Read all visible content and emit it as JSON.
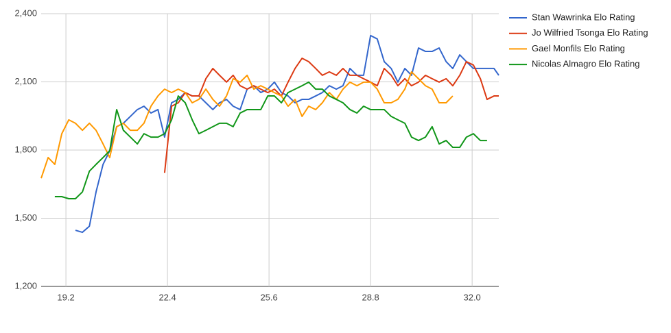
{
  "chart_data": {
    "type": "line",
    "x": [
      18.42,
      18.64,
      18.85,
      19.07,
      19.29,
      19.5,
      19.72,
      19.94,
      20.15,
      20.37,
      20.58,
      20.8,
      21.01,
      21.23,
      21.45,
      21.66,
      21.88,
      22.1,
      22.31,
      22.53,
      22.74,
      22.96,
      23.18,
      23.39,
      23.61,
      23.83,
      24.04,
      24.26,
      24.47,
      24.69,
      24.91,
      25.12,
      25.34,
      25.56,
      25.77,
      25.99,
      26.2,
      26.42,
      26.64,
      26.85,
      27.07,
      27.28,
      27.5,
      27.72,
      27.93,
      28.15,
      28.37,
      28.58,
      28.8,
      29.01,
      29.23,
      29.45,
      29.66,
      29.88,
      30.09,
      30.31,
      30.53,
      30.74,
      30.96,
      31.18,
      31.39,
      31.61,
      31.82,
      32.04,
      32.26,
      32.47,
      32.69,
      32.84
    ],
    "series": [
      {
        "name": "Stan Wawrinka Elo Rating",
        "color": "#3366cc",
        "values": [
          null,
          null,
          null,
          null,
          null,
          1447,
          1438,
          1465,
          1616,
          1737,
          1797,
          1903,
          1918,
          1948,
          1978,
          1993,
          1963,
          1978,
          1857,
          2008,
          2023,
          2053,
          2038,
          2038,
          2008,
          1978,
          2008,
          2023,
          1993,
          1978,
          2068,
          2083,
          2053,
          2068,
          2099,
          2053,
          2038,
          2008,
          2023,
          2023,
          2038,
          2053,
          2083,
          2068,
          2083,
          2159,
          2129,
          2129,
          2304,
          2289,
          2189,
          2159,
          2099,
          2159,
          2129,
          2249,
          2234,
          2234,
          2249,
          2189,
          2159,
          2219,
          2189,
          2159,
          2159,
          2159,
          2159,
          2129
        ]
      },
      {
        "name": "Jo Wilfried Tsonga Elo Rating",
        "color": "#dc3912",
        "values": [
          null,
          null,
          null,
          null,
          null,
          null,
          null,
          null,
          null,
          null,
          null,
          null,
          null,
          null,
          null,
          null,
          null,
          null,
          1700,
          1993,
          2008,
          2053,
          2038,
          2038,
          2114,
          2159,
          2129,
          2099,
          2129,
          2083,
          2068,
          2083,
          2068,
          2053,
          2068,
          2038,
          2099,
          2159,
          2204,
          2189,
          2159,
          2129,
          2144,
          2129,
          2159,
          2129,
          2129,
          2114,
          2099,
          2083,
          2159,
          2129,
          2083,
          2114,
          2083,
          2099,
          2129,
          2114,
          2099,
          2114,
          2083,
          2129,
          2189,
          2174,
          2114,
          2023,
          2038,
          2038
        ]
      },
      {
        "name": "Gael Monfils Elo Rating",
        "color": "#ff9900",
        "values": [
          1676,
          1767,
          1737,
          1872,
          1933,
          1918,
          1887,
          1918,
          1887,
          1827,
          1767,
          1903,
          1918,
          1887,
          1887,
          1918,
          1993,
          2038,
          2068,
          2053,
          2068,
          2053,
          2008,
          2023,
          2068,
          2023,
          1993,
          2038,
          2114,
          2099,
          2129,
          2068,
          2083,
          2068,
          2053,
          2038,
          1993,
          2023,
          1948,
          1993,
          1978,
          2008,
          2053,
          2023,
          2068,
          2099,
          2083,
          2099,
          2099,
          2068,
          2008,
          2008,
          2023,
          2068,
          2144,
          2114,
          2083,
          2068,
          2008,
          2008,
          2038,
          null,
          null,
          null,
          null,
          null,
          null,
          null
        ]
      },
      {
        "name": "Nicolas Almagro Elo Rating",
        "color": "#109618",
        "values": [
          null,
          null,
          1595,
          1595,
          1586,
          1586,
          1616,
          1707,
          1737,
          1767,
          1797,
          1978,
          1887,
          1857,
          1827,
          1872,
          1857,
          1857,
          1872,
          1933,
          2038,
          2008,
          1933,
          1872,
          1887,
          1903,
          1918,
          1918,
          1903,
          1963,
          1978,
          1978,
          1978,
          2038,
          2038,
          2008,
          2053,
          2068,
          2083,
          2099,
          2068,
          2068,
          2038,
          2023,
          2008,
          1978,
          1963,
          1993,
          1978,
          1978,
          1978,
          1948,
          1933,
          1918,
          1857,
          1842,
          1857,
          1903,
          1827,
          1842,
          1812,
          1812,
          1857,
          1872,
          1842,
          1842,
          null,
          null
        ]
      }
    ],
    "xlim": [
      18.42,
      32.84
    ],
    "ylim": [
      1200,
      2400
    ],
    "xticks": [
      19.2,
      22.4,
      25.6,
      28.8,
      {
        "value": 32,
        "label": "32.0"
      }
    ],
    "yticks": [
      {
        "value": 1200,
        "label": "1,200"
      },
      {
        "value": 1500,
        "label": "1,500"
      },
      {
        "value": 1800,
        "label": "1,800"
      },
      {
        "value": 2100,
        "label": "2,100"
      },
      {
        "value": 2400,
        "label": "2,400"
      }
    ],
    "grid": true,
    "legend": "right"
  }
}
